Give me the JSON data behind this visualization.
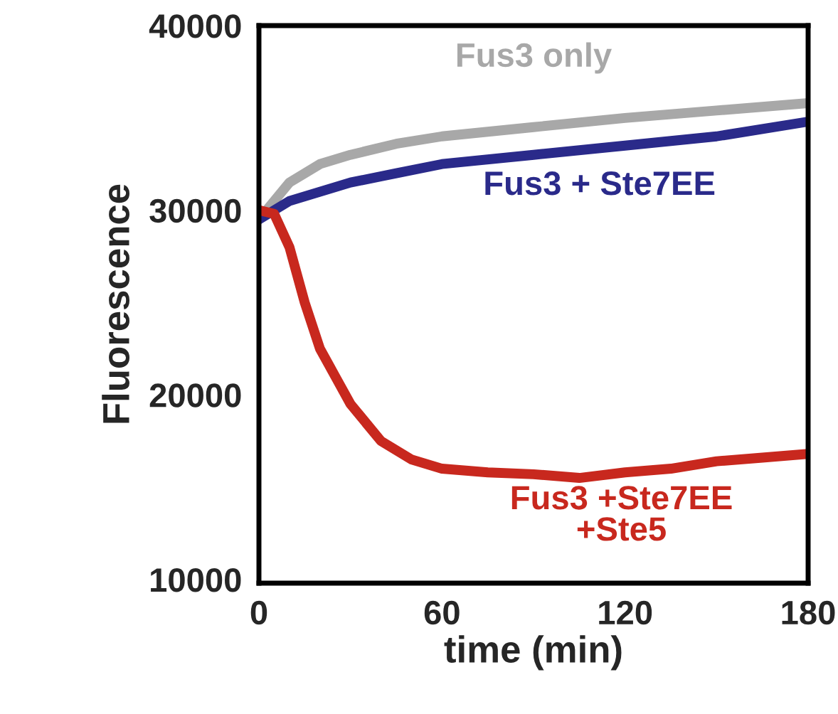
{
  "chart_data": {
    "type": "line",
    "xlabel": "time (min)",
    "ylabel": "Fluorescence",
    "xlim": [
      0,
      180
    ],
    "ylim": [
      9800,
      40000
    ],
    "xticks": [
      0,
      60,
      120,
      180
    ],
    "yticks": [
      10000,
      20000,
      30000,
      40000
    ],
    "grid": false,
    "legend": false,
    "marker": "none",
    "line_style": "solid",
    "series": [
      {
        "name": "Fus3 only",
        "color": "#a8a8a8",
        "x": [
          0,
          5,
          10,
          20,
          30,
          45,
          60,
          90,
          120,
          150,
          180
        ],
        "values": [
          29500,
          30500,
          31500,
          32500,
          33000,
          33600,
          34000,
          34500,
          35000,
          35400,
          35800
        ]
      },
      {
        "name": "Fus3 + Ste7EE",
        "color": "#2a2a8a",
        "x": [
          0,
          5,
          10,
          20,
          30,
          45,
          60,
          90,
          120,
          150,
          180
        ],
        "values": [
          29500,
          30000,
          30500,
          31000,
          31500,
          32000,
          32500,
          33000,
          33500,
          34000,
          34800
        ]
      },
      {
        "name": "Fus3 +Ste7EE\n+Ste5",
        "color": "#c8281e",
        "x": [
          0,
          5,
          10,
          15,
          20,
          25,
          30,
          40,
          50,
          60,
          75,
          90,
          105,
          120,
          135,
          150,
          165,
          180
        ],
        "values": [
          30000,
          29800,
          28000,
          25000,
          22500,
          21000,
          19500,
          17500,
          16500,
          16000,
          15800,
          15700,
          15500,
          15800,
          16000,
          16400,
          16600,
          16800
        ]
      }
    ]
  }
}
